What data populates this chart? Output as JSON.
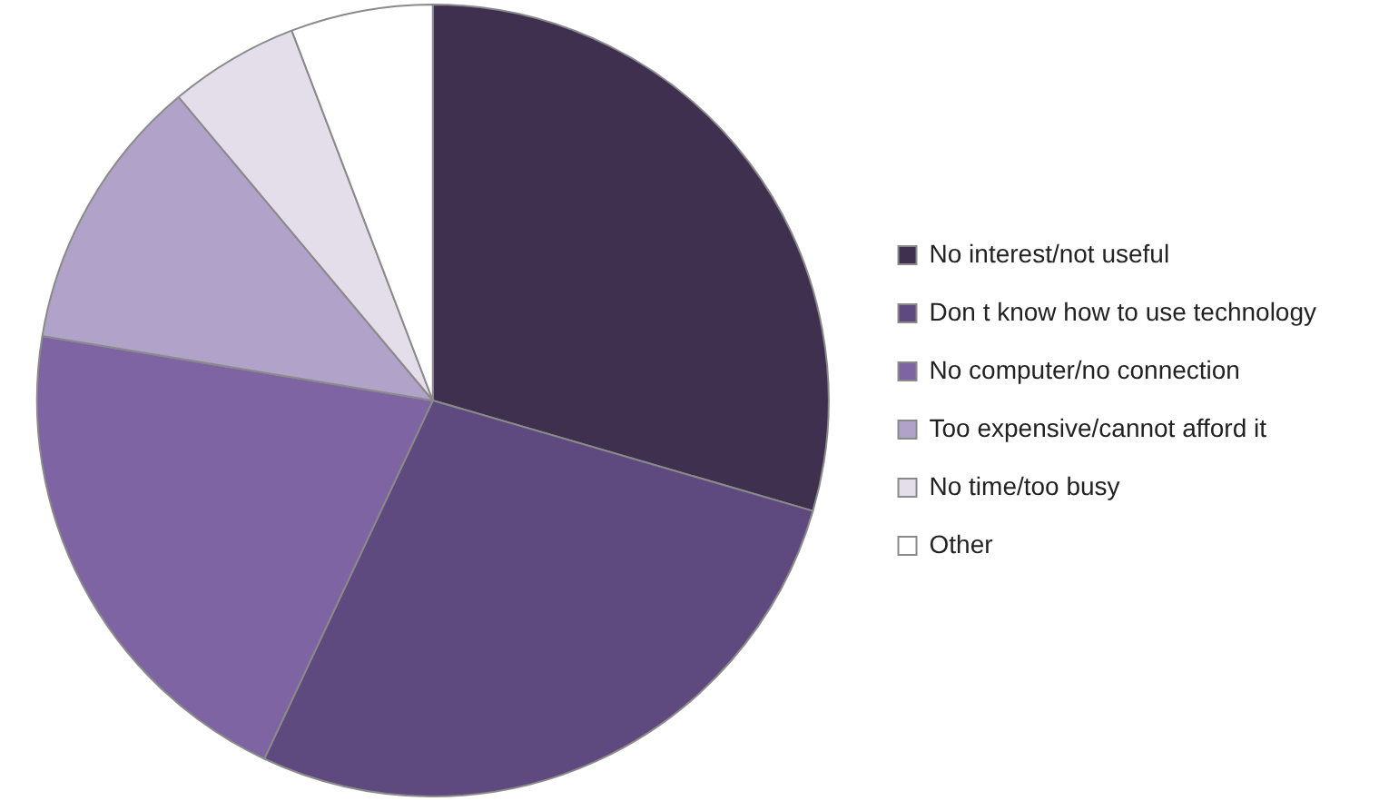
{
  "chart_data": {
    "type": "pie",
    "categories": [
      "No interest/not useful",
      "Don t know how to use technology",
      "No computer/no connection",
      "Too expensive/cannot afford it",
      "No time/too busy",
      "Other"
    ],
    "values": [
      29.5,
      27.5,
      20.6,
      11.3,
      5.3,
      5.8
    ],
    "colors": [
      "#3f3050",
      "#5e4a7e",
      "#7e64a3",
      "#b0a2c8",
      "#e4deeb",
      "#ffffff"
    ],
    "legend": "right"
  }
}
